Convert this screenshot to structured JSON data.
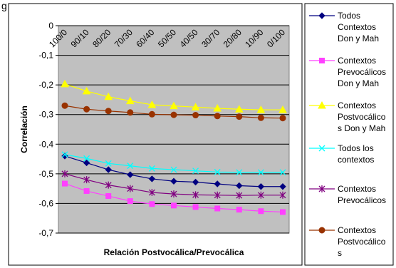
{
  "page_label": "g",
  "chart_data": {
    "type": "line",
    "title": "",
    "xlabel": "Relación Postvocálica/Prevocálica",
    "ylabel": "Correlación",
    "categories": [
      "100/0",
      "90/10",
      "80/20",
      "70/30",
      "60/40",
      "50/50",
      "40/50",
      "30/70",
      "20/80",
      "10/90",
      "0/100"
    ],
    "ylim": [
      -0.7,
      0
    ],
    "yticks": [
      "0",
      "-0,1",
      "-0,2",
      "-0,3",
      "-0,4",
      "-0,5",
      "-0,6",
      "-0,7"
    ],
    "grid": true,
    "legend_placement": "right",
    "series": [
      {
        "name": "Todos Contextos Don y Mah",
        "legend_lines": [
          "Todos",
          "Contextos",
          "Don y Mah"
        ],
        "color": "#000080",
        "marker": "diamond",
        "values": [
          -0.44,
          -0.463,
          -0.486,
          -0.503,
          -0.517,
          -0.525,
          -0.528,
          -0.534,
          -0.54,
          -0.543,
          -0.543
        ]
      },
      {
        "name": "Contextos Prevocálicos Don y Mah",
        "legend_lines": [
          "Contextos",
          "Prevocálicos",
          "Don y Mah"
        ],
        "color": "#ff40ff",
        "marker": "square",
        "values": [
          -0.533,
          -0.558,
          -0.575,
          -0.592,
          -0.602,
          -0.607,
          -0.612,
          -0.617,
          -0.621,
          -0.626,
          -0.629
        ]
      },
      {
        "name": "Contextos Postvocálicos Don y Mah",
        "legend_lines": [
          "Contextos",
          "Postvocálico",
          "s Don y Mah"
        ],
        "color": "#ffff00",
        "marker": "triangle",
        "values": [
          -0.197,
          -0.221,
          -0.24,
          -0.254,
          -0.267,
          -0.271,
          -0.275,
          -0.279,
          -0.282,
          -0.284,
          -0.284
        ]
      },
      {
        "name": "Todos los contextos",
        "legend_lines": [
          "Todos los",
          "contextos"
        ],
        "color": "#00ffff",
        "marker": "x",
        "values": [
          -0.435,
          -0.448,
          -0.465,
          -0.473,
          -0.482,
          -0.486,
          -0.49,
          -0.494,
          -0.495,
          -0.495,
          -0.495
        ]
      },
      {
        "name": "Contextos Prevocálicos",
        "legend_lines": [
          "Contextos",
          "Prevocálicos"
        ],
        "color": "#800080",
        "marker": "star",
        "values": [
          -0.5,
          -0.52,
          -0.538,
          -0.55,
          -0.563,
          -0.568,
          -0.571,
          -0.572,
          -0.573,
          -0.572,
          -0.572
        ]
      },
      {
        "name": "Contextos Postvocálicos",
        "legend_lines": [
          "Contextos",
          "Postvocálico",
          "s"
        ],
        "color": "#993300",
        "marker": "circle",
        "values": [
          -0.27,
          -0.282,
          -0.288,
          -0.293,
          -0.299,
          -0.301,
          -0.302,
          -0.305,
          -0.307,
          -0.311,
          -0.312
        ]
      }
    ]
  }
}
